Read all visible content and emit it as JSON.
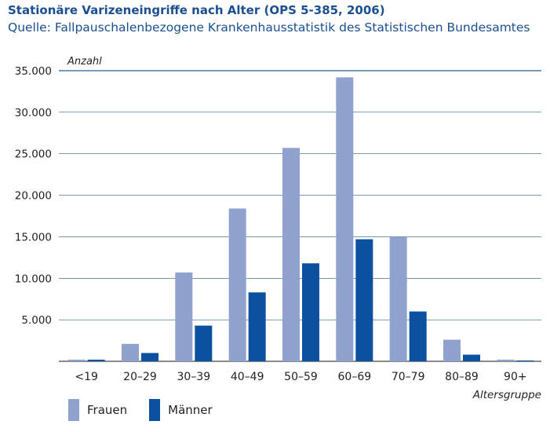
{
  "title": "Stationäre Varizeneingriffe nach Alter (OPS 5-385, 2006)",
  "subtitle": "Quelle: Fallpauschalenbezogene Krankenhausstatistik des Statistischen Bundesamtes",
  "colors": {
    "frauen": "#8fa1cd",
    "maenner": "#0b519f",
    "grid": "#2a5b8f",
    "title": "#1b4f8f"
  },
  "chart_data": {
    "type": "bar",
    "title": "Stationäre Varizeneingriffe nach Alter (OPS 5-385, 2006)",
    "subtitle": "Quelle: Fallpauschalenbezogene Krankenhausstatistik des Statistischen Bundesamtes",
    "ylabel": "Anzahl",
    "xlabel": "Altersgruppe",
    "ylim": [
      0,
      35000
    ],
    "yticks": [
      5000,
      10000,
      15000,
      20000,
      25000,
      30000,
      35000
    ],
    "ytick_labels": [
      "5.000",
      "10.000",
      "15.000",
      "20.000",
      "25.000",
      "30.000",
      "35.000"
    ],
    "grid": true,
    "legend_position": "bottom-left",
    "categories": [
      "<19",
      "20–29",
      "30–39",
      "40–49",
      "50–59",
      "60–69",
      "70–79",
      "80–89",
      "90+"
    ],
    "series": [
      {
        "name": "Frauen",
        "values": [
          200,
          2100,
          10700,
          18400,
          25700,
          34200,
          15000,
          2600,
          200
        ]
      },
      {
        "name": "Männer",
        "values": [
          200,
          1000,
          4300,
          8300,
          11800,
          14700,
          6000,
          800,
          100
        ]
      }
    ]
  }
}
